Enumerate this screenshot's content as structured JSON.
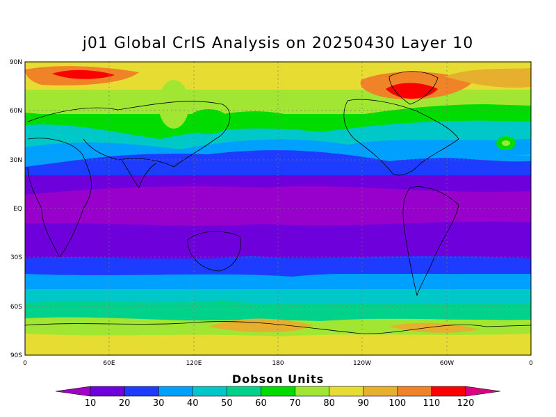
{
  "title": "j01 Global CrIS Analysis on 20250430 Layer 10",
  "map": {
    "projection": "equirectangular",
    "lon_range": [
      0,
      360
    ],
    "lat_range": [
      -90,
      90
    ],
    "lat_labels": [
      "90N",
      "60N",
      "30N",
      "EQ",
      "30S",
      "60S",
      "90S"
    ],
    "lon_labels": [
      "0",
      "60E",
      "120E",
      "180",
      "120W",
      "60W",
      "0"
    ],
    "gridlines": "dotted",
    "field": "ozone column (contour-filled)"
  },
  "colorbar": {
    "title": "Dobson Units",
    "labels": [
      "10",
      "20",
      "30",
      "40",
      "50",
      "60",
      "70",
      "80",
      "90",
      "100",
      "110",
      "120"
    ],
    "colors": [
      "#a000c8",
      "#6e00dc",
      "#1e3cff",
      "#00a0ff",
      "#00c8c8",
      "#00d28c",
      "#00dc00",
      "#a0e632",
      "#e6dc32",
      "#e6af2d",
      "#f08228",
      "#fa0000",
      "#dc0082"
    ]
  }
}
